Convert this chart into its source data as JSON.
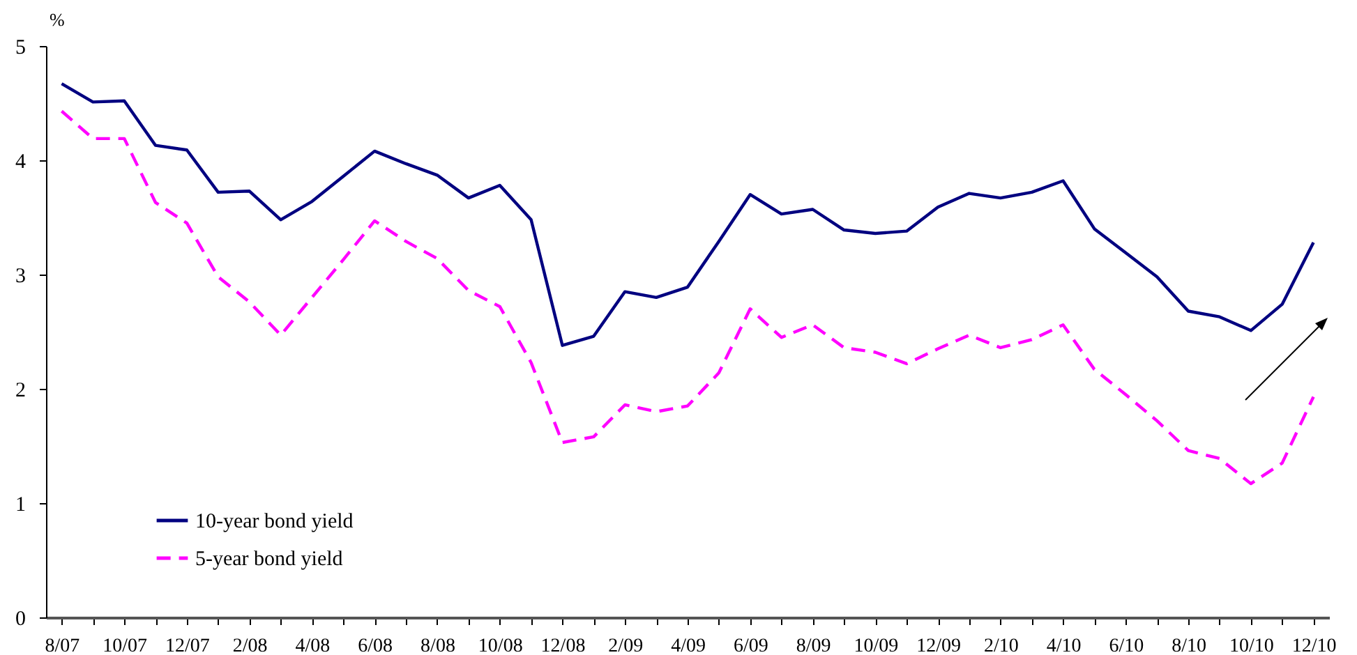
{
  "chart_data": {
    "type": "line",
    "ylabel": "%",
    "categories": [
      "8/07",
      null,
      "10/07",
      null,
      "12/07",
      null,
      "2/08",
      null,
      "4/08",
      null,
      "6/08",
      null,
      "8/08",
      null,
      "10/08",
      null,
      "12/08",
      null,
      "2/09",
      null,
      "4/09",
      null,
      "6/09",
      null,
      "8/09",
      null,
      "10/09",
      null,
      "12/09",
      null,
      "2/10",
      null,
      "4/10",
      null,
      "6/10",
      null,
      "8/10",
      null,
      "10/10",
      null,
      "12/10"
    ],
    "series": [
      {
        "name": "10-year bond yield",
        "color": "#000080",
        "line_style": "solid",
        "values": [
          4.67,
          4.51,
          4.52,
          4.13,
          4.09,
          3.72,
          3.73,
          3.48,
          3.64,
          3.86,
          4.08,
          3.97,
          3.87,
          3.67,
          3.78,
          3.48,
          2.38,
          2.46,
          2.85,
          2.8,
          2.89,
          3.29,
          3.7,
          3.53,
          3.57,
          3.39,
          3.36,
          3.38,
          3.59,
          3.71,
          3.67,
          3.72,
          3.82,
          3.4,
          3.19,
          2.98,
          2.68,
          2.63,
          2.51,
          2.74,
          3.28
        ]
      },
      {
        "name": "5-year bond yield",
        "color": "#ff00ff",
        "line_style": "dashed",
        "values": [
          4.43,
          4.19,
          4.19,
          3.63,
          3.45,
          2.98,
          2.76,
          2.47,
          2.8,
          3.13,
          3.47,
          3.29,
          3.14,
          2.86,
          2.72,
          2.23,
          1.53,
          1.58,
          1.86,
          1.8,
          1.85,
          2.14,
          2.7,
          2.45,
          2.56,
          2.36,
          2.32,
          2.22,
          2.35,
          2.47,
          2.36,
          2.43,
          2.56,
          2.17,
          1.95,
          1.72,
          1.46,
          1.39,
          1.17,
          1.35,
          1.93
        ]
      }
    ],
    "ylim": [
      0,
      5
    ],
    "yticks": [
      0,
      1,
      2,
      3,
      4,
      5
    ],
    "grid": false,
    "legend": "bottom left"
  }
}
